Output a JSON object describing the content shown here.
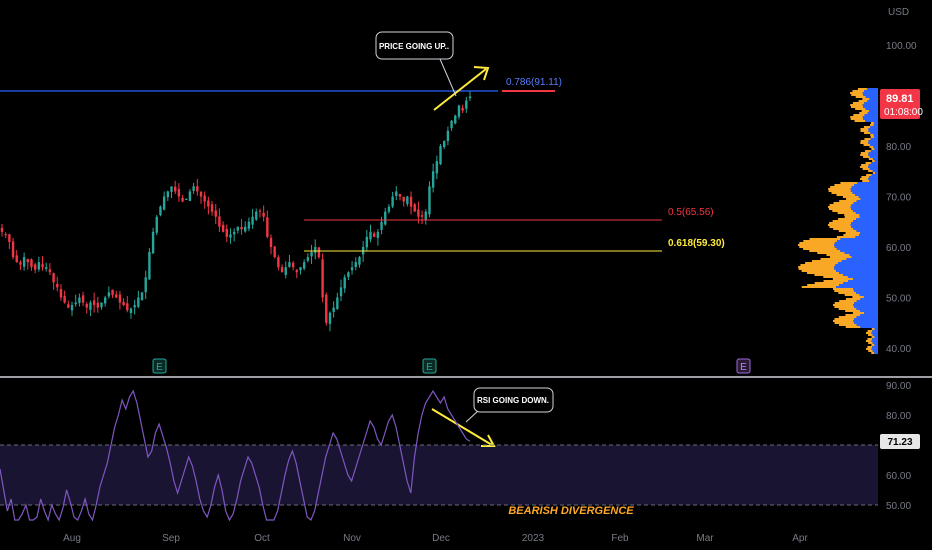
{
  "chart_data": {
    "type": "candlestick",
    "currency_label": "USD",
    "price_axis": {
      "ticks": [
        40,
        50,
        60,
        70,
        80,
        90,
        100
      ],
      "tick_labels": [
        "40.00",
        "50.00",
        "60.00",
        "70.00",
        "80.00",
        "90.00",
        "100.00"
      ],
      "ylim": [
        38,
        107
      ]
    },
    "rsi_axis": {
      "ticks": [
        50,
        60,
        70,
        80,
        90
      ],
      "tick_labels": [
        "50.00",
        "60.00",
        "70.00",
        "80.00",
        "90.00"
      ],
      "ylim": [
        45,
        92
      ],
      "upper_band": 70,
      "lower_band": 50
    },
    "time_axis": [
      "Aug",
      "Sep",
      "Oct",
      "Nov",
      "Dec",
      "2023",
      "Feb",
      "Mar",
      "Apr"
    ],
    "last_price": "89.81",
    "countdown": "01:08:00",
    "rsi_value": "71.23",
    "fib_levels": [
      {
        "label": "0.786(91.11)",
        "price": 91.11,
        "color": "#2962ff"
      },
      {
        "label": "0.5(65.56)",
        "price": 65.56,
        "color": "#f23645"
      },
      {
        "label": "0.618(59.30)",
        "price": 59.3,
        "color": "#ffeb3b"
      }
    ],
    "earnings_markers": [
      {
        "label": "E",
        "time": "Sep"
      },
      {
        "label": "E",
        "time": "Dec"
      },
      {
        "label": "E",
        "time": "Mar"
      }
    ],
    "annotations": {
      "price_callout": "PRICE GOING UP..",
      "rsi_callout": "RSI GOING DOWN.",
      "divergence": "BEARISH DIVERGENCE"
    },
    "candles_close": [
      63,
      62.5,
      61,
      58,
      57,
      56.5,
      58,
      57,
      56,
      55.5,
      57,
      56,
      56,
      55,
      53,
      52,
      50,
      49,
      48,
      48.5,
      49,
      50,
      49,
      48,
      49,
      48.5,
      48,
      49,
      50,
      51,
      50.5,
      50,
      49,
      48.5,
      47.5,
      47.8,
      48.5,
      50,
      51,
      54,
      59,
      63,
      66,
      68,
      70,
      71,
      72,
      71,
      70,
      69,
      69.5,
      71,
      72,
      71,
      70,
      69,
      68,
      67,
      66,
      64,
      63,
      62,
      62.5,
      63,
      64,
      63.5,
      64,
      65,
      66,
      67,
      67,
      66,
      62,
      60,
      58,
      56,
      55,
      56,
      57,
      56,
      55,
      56,
      57,
      58,
      59,
      60,
      58,
      50,
      45,
      47,
      48,
      50,
      52,
      54,
      55,
      56,
      57,
      58,
      60,
      62,
      63,
      62,
      63,
      65,
      67,
      68,
      70,
      71,
      70,
      69,
      70,
      68,
      67,
      66,
      66,
      67,
      72,
      75,
      77,
      80,
      81,
      83,
      85,
      86,
      88,
      87,
      89,
      89.81
    ],
    "rsi_series": [
      62,
      55,
      48,
      52,
      45,
      42,
      47,
      50,
      44,
      41,
      46,
      52,
      48,
      44,
      50,
      47,
      43,
      49,
      55,
      51,
      46,
      44,
      48,
      52,
      47,
      45,
      50,
      56,
      60,
      64,
      70,
      76,
      80,
      85,
      82,
      86,
      88,
      84,
      78,
      72,
      66,
      68,
      74,
      77,
      73,
      69,
      64,
      58,
      54,
      58,
      62,
      66,
      63,
      58,
      52,
      48,
      46,
      50,
      56,
      60,
      55,
      48,
      44,
      47,
      52,
      58,
      62,
      66,
      64,
      60,
      56,
      50,
      44,
      40,
      43,
      48,
      54,
      60,
      65,
      68,
      64,
      58,
      52,
      46,
      44,
      48,
      54,
      60,
      66,
      70,
      74,
      72,
      68,
      64,
      60,
      58,
      62,
      66,
      70,
      74,
      78,
      76,
      72,
      70,
      74,
      78,
      80,
      76,
      70,
      64,
      58,
      54,
      66,
      74,
      80,
      84,
      86,
      88,
      86,
      84,
      86,
      82,
      80,
      78,
      76,
      74,
      72,
      71.23
    ]
  }
}
